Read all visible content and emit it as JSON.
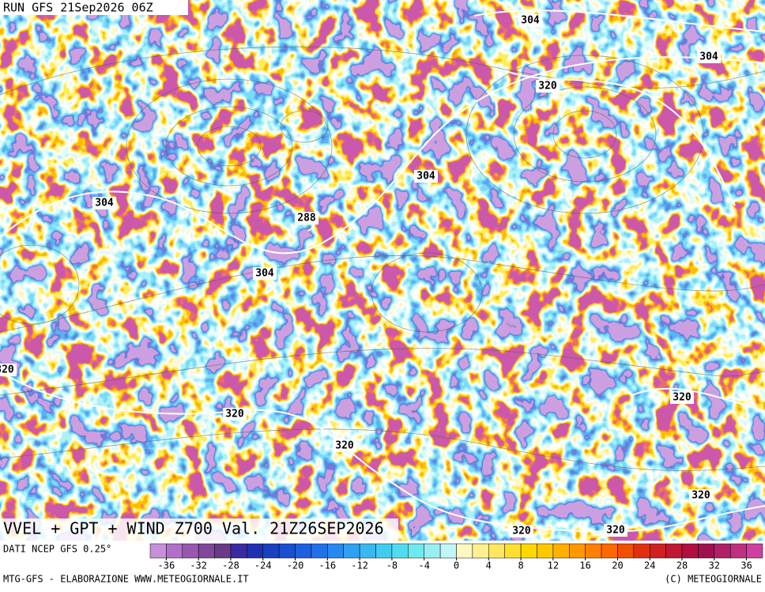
{
  "header": {
    "run": "RUN GFS 21Sep2026 06Z"
  },
  "map": {
    "title": "VVEL + GPT + WIND Z700 Val. 21Z26SEP2026",
    "contour_labels": [
      "304",
      "304",
      "320",
      "304",
      "304",
      "288",
      "304",
      "320",
      "320",
      "320",
      "320",
      "320",
      "320",
      "320"
    ]
  },
  "colorbar": {
    "range": [
      -38,
      38
    ],
    "step": 2,
    "colors": [
      "#c890d8",
      "#b070c8",
      "#9858b0",
      "#804898",
      "#6a3a88",
      "#3a2aa0",
      "#2030b0",
      "#1840c0",
      "#1850d0",
      "#1c60e0",
      "#2070e8",
      "#2888f0",
      "#30a0f0",
      "#38b8f0",
      "#40ccf0",
      "#50dcf0",
      "#70e8f0",
      "#98f0f0",
      "#c0f8f8",
      "#fff8c0",
      "#fff090",
      "#ffe860",
      "#ffe030",
      "#ffd800",
      "#ffc800",
      "#ffb000",
      "#ff9800",
      "#ff8000",
      "#ff6800",
      "#f05000",
      "#e03010",
      "#d02020",
      "#c01830",
      "#b01040",
      "#a01050",
      "#b02068",
      "#c03080",
      "#d040a0"
    ],
    "ticks": [
      -36,
      -32,
      -28,
      -24,
      -20,
      -16,
      -12,
      -8,
      -4,
      0,
      4,
      8,
      12,
      16,
      20,
      24,
      28,
      32,
      36
    ]
  },
  "footer": {
    "source": "DATI NCEP GFS 0.25°",
    "credits": "MTG-GFS - ELABORAZIONE WWW.METEOGIORNALE.IT",
    "copyright": "(C) METEOGIORNALE"
  }
}
